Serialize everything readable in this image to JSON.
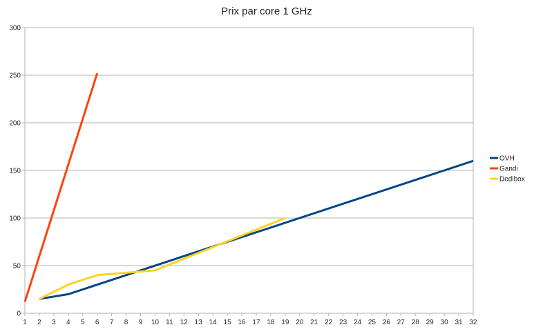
{
  "chart_data": {
    "type": "line",
    "title": "Prix par core 1 GHz",
    "xlabel": "",
    "ylabel": "",
    "xlim": [
      1,
      32
    ],
    "ylim": [
      0,
      300
    ],
    "x_ticks": [
      1,
      2,
      3,
      4,
      5,
      6,
      7,
      8,
      9,
      10,
      11,
      12,
      13,
      14,
      15,
      16,
      17,
      18,
      19,
      20,
      21,
      22,
      23,
      24,
      25,
      26,
      27,
      28,
      29,
      30,
      31,
      32
    ],
    "y_ticks": [
      0,
      50,
      100,
      150,
      200,
      250,
      300
    ],
    "grid": "horizontal",
    "legend_position": "right",
    "series": [
      {
        "name": "OVH",
        "color": "#004586",
        "points": [
          [
            2,
            15
          ],
          [
            4,
            20
          ],
          [
            32,
            160
          ]
        ]
      },
      {
        "name": "Gandi",
        "color": "#ff420e",
        "points": [
          [
            1,
            12
          ],
          [
            6,
            252
          ]
        ]
      },
      {
        "name": "Dedibox",
        "color": "#ffd320",
        "points": [
          [
            2,
            15
          ],
          [
            4,
            30
          ],
          [
            6,
            40
          ],
          [
            10,
            45
          ],
          [
            19,
            100
          ]
        ]
      }
    ]
  }
}
